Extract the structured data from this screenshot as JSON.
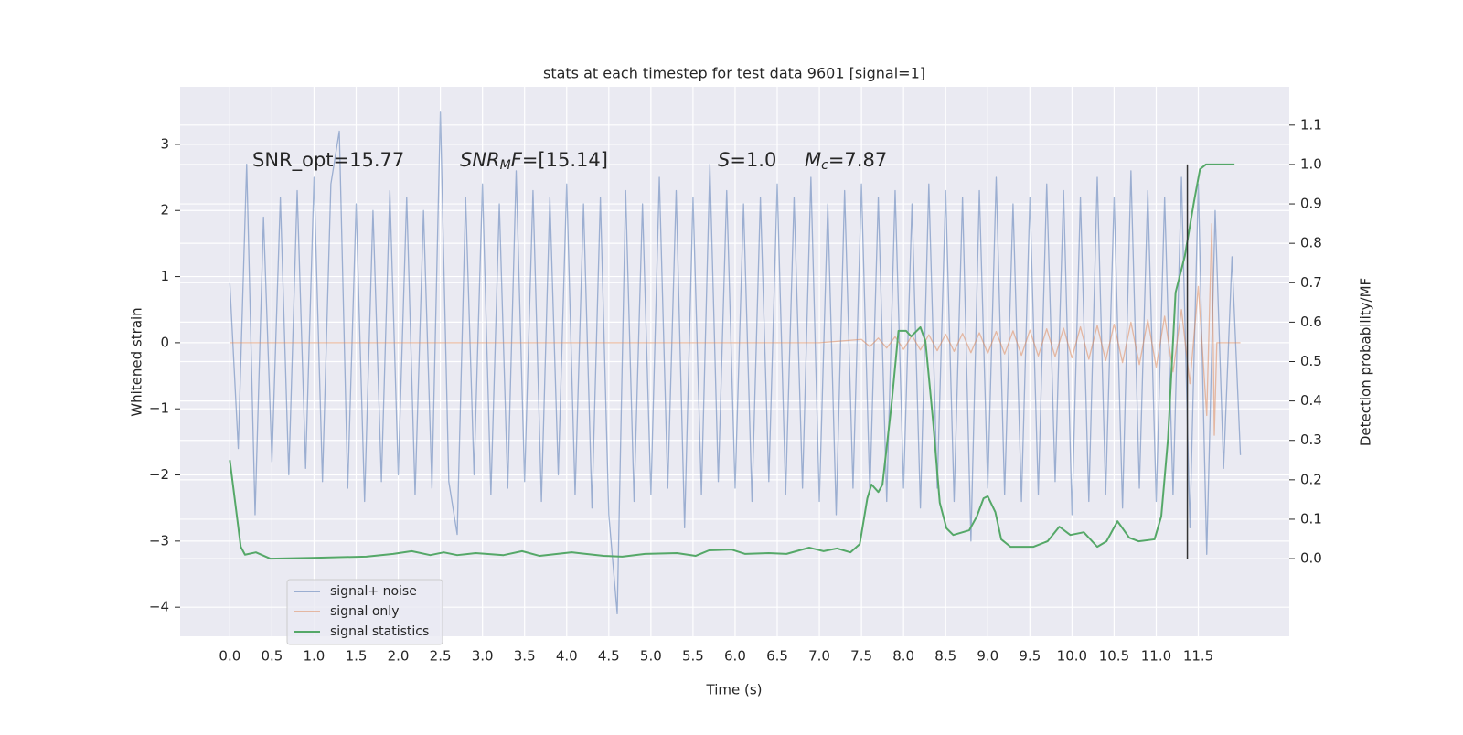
{
  "chart_data": {
    "type": "line",
    "title": "stats at each timestep for test data 9601 [signal=1]",
    "xlabel": "Time (s)",
    "ylabel": "Whitened strain",
    "y2label": "Detection probability/MF",
    "grid": true,
    "legend": "lower left",
    "xlim": [
      -0.59,
      12.58
    ],
    "ylim": [
      -4.44,
      3.87
    ],
    "y2lim": [
      -0.197,
      1.197
    ],
    "xticks": [
      {
        "value": 0,
        "label": "0.0"
      },
      0.5,
      {
        "value": 1,
        "label": "1.0"
      },
      1.5,
      {
        "value": 2,
        "label": "2.0"
      },
      2.5,
      {
        "value": 3,
        "label": "3.0"
      },
      3.5,
      {
        "value": 4,
        "label": "4.0"
      },
      4.5,
      {
        "value": 5,
        "label": "5.0"
      },
      5.5,
      {
        "value": 6,
        "label": "6.0"
      },
      6.5,
      {
        "value": 7,
        "label": "7.0"
      },
      7.5,
      {
        "value": 8,
        "label": "8.0"
      },
      8.5,
      {
        "value": 9,
        "label": "9.0"
      },
      9.5,
      {
        "value": 10,
        "label": "10.0"
      },
      10.5,
      {
        "value": 11,
        "label": "11.0"
      },
      11.5
    ],
    "yticks": [
      {
        "value": -4,
        "label": "−4"
      },
      {
        "value": -3,
        "label": "−3"
      },
      {
        "value": -2,
        "label": "−2"
      },
      {
        "value": -1,
        "label": "−1"
      },
      0,
      1,
      2,
      3
    ],
    "y2ticks": [
      {
        "value": 0,
        "label": "0.0"
      },
      0.1,
      0.2,
      0.3,
      0.4,
      0.5,
      0.6,
      0.7,
      0.8,
      0.9,
      {
        "value": 1,
        "label": "1.0"
      },
      1.1
    ],
    "annotations": [
      {
        "text": "SNR_opt=15.77"
      },
      {
        "math": "SNR",
        "sub": "M",
        "math2": "F",
        "text": "=[15.14]"
      },
      {
        "math": "S",
        "text": "=1.0"
      },
      {
        "math": "M",
        "sub": "c",
        "text": "=7.87"
      }
    ],
    "vline": {
      "x": 11.37,
      "y2": [
        0,
        1
      ],
      "color": "#333333"
    },
    "series": [
      {
        "name": "signal+ noise",
        "color": "#4c72b0",
        "alpha": 0.5,
        "x": [
          0.0,
          0.1,
          0.2,
          0.3,
          0.4,
          0.5,
          0.6,
          0.7,
          0.8,
          0.9,
          1.0,
          1.1,
          1.2,
          1.3,
          1.4,
          1.5,
          1.6,
          1.7,
          1.8,
          1.9,
          2.0,
          2.1,
          2.2,
          2.3,
          2.4,
          2.5,
          2.6,
          2.7,
          2.8,
          2.9,
          3.0,
          3.1,
          3.2,
          3.3,
          3.4,
          3.5,
          3.6,
          3.7,
          3.8,
          3.9,
          4.0,
          4.1,
          4.2,
          4.3,
          4.4,
          4.5,
          4.6,
          4.7,
          4.8,
          4.9,
          5.0,
          5.1,
          5.2,
          5.3,
          5.4,
          5.5,
          5.6,
          5.7,
          5.8,
          5.9,
          6.0,
          6.1,
          6.2,
          6.3,
          6.4,
          6.5,
          6.6,
          6.7,
          6.8,
          6.9,
          7.0,
          7.1,
          7.2,
          7.3,
          7.4,
          7.5,
          7.6,
          7.7,
          7.8,
          7.9,
          8.0,
          8.1,
          8.2,
          8.3,
          8.4,
          8.5,
          8.6,
          8.7,
          8.8,
          8.9,
          9.0,
          9.1,
          9.2,
          9.3,
          9.4,
          9.5,
          9.6,
          9.7,
          9.8,
          9.9,
          10.0,
          10.1,
          10.2,
          10.3,
          10.4,
          10.5,
          10.6,
          10.7,
          10.8,
          10.9,
          11.0,
          11.1,
          11.2,
          11.3,
          11.4,
          11.5,
          11.6,
          11.7,
          11.8,
          11.9,
          12.0
        ],
        "values": [
          0.9,
          -1.6,
          2.7,
          -2.6,
          1.9,
          -1.8,
          2.2,
          -2.0,
          2.3,
          -1.9,
          2.5,
          -2.1,
          2.4,
          3.2,
          -2.2,
          2.1,
          -2.4,
          2.0,
          -2.1,
          2.3,
          -2.0,
          2.2,
          -2.3,
          2.0,
          -2.2,
          3.5,
          -2.1,
          -2.9,
          2.2,
          -2.0,
          2.4,
          -2.3,
          2.1,
          -2.2,
          2.6,
          -2.1,
          2.3,
          -2.4,
          2.2,
          -2.0,
          2.4,
          -2.3,
          2.1,
          -2.5,
          2.2,
          -2.6,
          -4.1,
          2.3,
          -2.4,
          2.1,
          -2.3,
          2.5,
          -2.2,
          2.3,
          -2.8,
          2.2,
          -2.3,
          2.7,
          -2.1,
          2.3,
          -2.2,
          2.1,
          -2.4,
          2.2,
          -2.1,
          2.4,
          -2.3,
          2.2,
          -2.2,
          2.5,
          -2.4,
          2.1,
          -2.6,
          2.3,
          -2.2,
          2.4,
          -2.3,
          2.2,
          -2.4,
          2.3,
          -2.2,
          2.1,
          -2.5,
          2.4,
          -2.2,
          2.3,
          -2.4,
          2.2,
          -3.0,
          2.3,
          -2.2,
          2.5,
          -2.3,
          2.1,
          -2.4,
          2.2,
          -2.3,
          2.4,
          -2.1,
          2.3,
          -2.6,
          2.2,
          -2.4,
          2.5,
          -2.3,
          2.2,
          -2.5,
          2.6,
          -2.2,
          2.3,
          -2.4,
          2.2,
          -2.3,
          2.5,
          -2.8,
          2.4,
          -3.2,
          2.0,
          -1.9,
          1.3,
          -1.7
        ]
      },
      {
        "name": "signal only",
        "color": "#dd8452",
        "alpha": 0.5,
        "x": [
          0,
          0.5,
          1.0,
          1.5,
          2.0,
          2.5,
          3.0,
          3.5,
          4.0,
          4.5,
          5.0,
          5.5,
          6.0,
          6.5,
          7.0,
          7.5,
          7.6,
          7.7,
          7.8,
          7.9,
          8.0,
          8.1,
          8.2,
          8.3,
          8.4,
          8.5,
          8.6,
          8.7,
          8.8,
          8.9,
          9.0,
          9.1,
          9.2,
          9.3,
          9.4,
          9.5,
          9.6,
          9.7,
          9.8,
          9.9,
          10.0,
          10.1,
          10.2,
          10.3,
          10.4,
          10.5,
          10.6,
          10.7,
          10.8,
          10.9,
          11.0,
          11.1,
          11.2,
          11.3,
          11.4,
          11.5,
          11.6,
          11.66,
          11.69,
          11.72,
          12.0
        ],
        "values": [
          0,
          0,
          0,
          0,
          0,
          0,
          0,
          0,
          0,
          0,
          0,
          0,
          0,
          0,
          0,
          0.05,
          -0.06,
          0.07,
          -0.08,
          0.09,
          -0.1,
          0.11,
          -0.11,
          0.12,
          -0.12,
          0.13,
          -0.13,
          0.14,
          -0.15,
          0.15,
          -0.16,
          0.17,
          -0.17,
          0.18,
          -0.19,
          0.19,
          -0.2,
          0.21,
          -0.21,
          0.22,
          -0.23,
          0.24,
          -0.25,
          0.26,
          -0.27,
          0.28,
          -0.3,
          0.31,
          -0.33,
          0.35,
          -0.37,
          0.4,
          -0.44,
          0.5,
          -0.62,
          0.85,
          -1.1,
          1.8,
          -1.4,
          0,
          0
        ]
      },
      {
        "name": "signal statistics",
        "color": "#55a868",
        "axis": "y2",
        "x": [
          0,
          0.13,
          0.18,
          0.31,
          0.48,
          0.97,
          1.62,
          1.94,
          2.16,
          2.38,
          2.54,
          2.7,
          2.92,
          3.25,
          3.47,
          3.68,
          4.06,
          4.44,
          4.66,
          4.93,
          5.31,
          5.53,
          5.69,
          5.96,
          6.12,
          6.4,
          6.61,
          6.88,
          7.05,
          7.21,
          7.37,
          7.48,
          7.57,
          7.62,
          7.7,
          7.75,
          7.86,
          7.94,
          8.03,
          8.09,
          8.2,
          8.26,
          8.35,
          8.43,
          8.51,
          8.59,
          8.78,
          8.87,
          8.95,
          9.0,
          9.09,
          9.16,
          9.27,
          9.54,
          9.71,
          9.85,
          9.98,
          10.14,
          10.3,
          10.41,
          10.54,
          10.68,
          10.79,
          10.98,
          11.06,
          11.14,
          11.23,
          11.34,
          11.45,
          11.52,
          11.59,
          11.93
        ],
        "values": [
          0.25,
          0.03,
          0.01,
          0.016,
          0.0,
          0.002,
          0.005,
          0.012,
          0.019,
          0.009,
          0.016,
          0.009,
          0.014,
          0.009,
          0.019,
          0.007,
          0.016,
          0.007,
          0.005,
          0.012,
          0.014,
          0.007,
          0.021,
          0.023,
          0.012,
          0.014,
          0.012,
          0.028,
          0.019,
          0.026,
          0.016,
          0.037,
          0.153,
          0.188,
          0.169,
          0.188,
          0.397,
          0.578,
          0.578,
          0.564,
          0.587,
          0.552,
          0.35,
          0.142,
          0.077,
          0.06,
          0.072,
          0.107,
          0.153,
          0.158,
          0.118,
          0.049,
          0.03,
          0.03,
          0.044,
          0.081,
          0.06,
          0.067,
          0.03,
          0.044,
          0.095,
          0.053,
          0.044,
          0.049,
          0.107,
          0.304,
          0.675,
          0.768,
          0.907,
          0.988,
          1.0,
          1.0
        ]
      }
    ]
  }
}
